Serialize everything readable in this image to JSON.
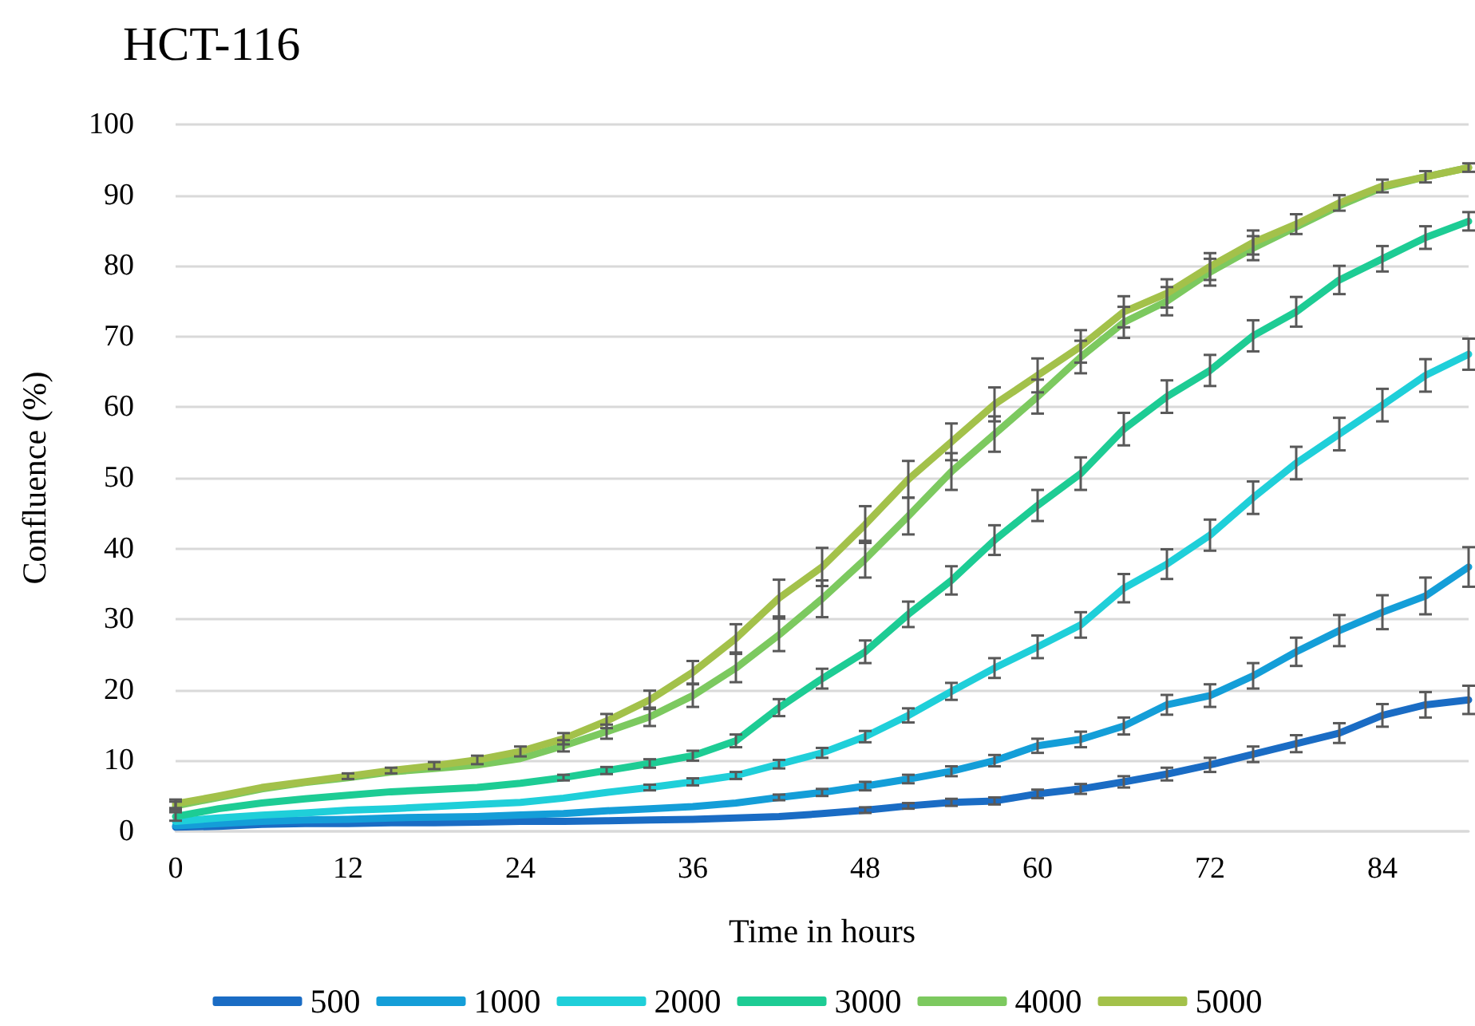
{
  "chart_data": {
    "type": "line",
    "title": "HCT-116",
    "xlabel": "Time in hours",
    "ylabel": "Confluence (%)",
    "x": [
      0,
      3,
      6,
      9,
      12,
      15,
      18,
      21,
      24,
      27,
      30,
      33,
      36,
      39,
      42,
      45,
      48,
      51,
      54,
      57,
      60,
      63,
      66,
      69,
      72,
      75,
      78,
      81,
      84,
      87,
      90
    ],
    "xlim": [
      0,
      90
    ],
    "xticks": [
      0,
      12,
      24,
      36,
      48,
      60,
      72,
      84
    ],
    "ylim": [
      0,
      100
    ],
    "yticks": [
      0,
      10,
      20,
      30,
      40,
      50,
      60,
      70,
      80,
      90,
      100
    ],
    "grid": "y",
    "legend": "bottom",
    "marker": "none",
    "line_style": "solid",
    "series": [
      {
        "name": "500",
        "color": "#1a6cc4",
        "values": [
          0.6,
          0.7,
          1.0,
          1.1,
          1.1,
          1.2,
          1.2,
          1.3,
          1.4,
          1.4,
          1.5,
          1.6,
          1.7,
          1.9,
          2.1,
          2.5,
          3.0,
          3.6,
          4.1,
          4.3,
          5.3,
          6.0,
          7.0,
          8.1,
          9.4,
          10.9,
          12.4,
          13.9,
          16.4,
          17.9,
          18.6
        ],
        "errors": [
          null,
          null,
          null,
          null,
          null,
          null,
          null,
          null,
          null,
          null,
          null,
          null,
          null,
          null,
          null,
          null,
          0.4,
          0.4,
          0.5,
          0.5,
          0.6,
          0.7,
          0.8,
          0.9,
          1.0,
          1.1,
          1.2,
          1.4,
          1.6,
          1.8,
          2.0
        ]
      },
      {
        "name": "1000",
        "color": "#149ed8",
        "values": [
          0.8,
          1.1,
          1.4,
          1.6,
          1.7,
          1.9,
          2.0,
          2.1,
          2.3,
          2.5,
          2.9,
          3.2,
          3.5,
          4.0,
          4.8,
          5.5,
          6.4,
          7.4,
          8.5,
          10.0,
          12.1,
          13.0,
          14.9,
          17.9,
          19.2,
          22.0,
          25.4,
          28.4,
          31.0,
          33.3,
          37.4
        ],
        "errors": [
          null,
          null,
          null,
          null,
          null,
          null,
          null,
          null,
          null,
          null,
          null,
          null,
          null,
          null,
          0.4,
          0.5,
          0.6,
          0.6,
          0.7,
          0.8,
          1.0,
          1.1,
          1.2,
          1.4,
          1.6,
          1.8,
          2.0,
          2.2,
          2.4,
          2.6,
          2.8
        ]
      },
      {
        "name": "2000",
        "color": "#1fcfd9",
        "values": [
          1.4,
          1.9,
          2.3,
          2.6,
          3.0,
          3.2,
          3.5,
          3.8,
          4.1,
          4.7,
          5.5,
          6.2,
          7.0,
          7.9,
          9.5,
          11.1,
          13.4,
          16.4,
          19.8,
          23.1,
          26.1,
          29.2,
          34.4,
          37.8,
          41.9,
          47.2,
          52.1,
          56.2,
          60.3,
          64.5,
          67.5
        ],
        "errors": [
          null,
          null,
          null,
          null,
          null,
          null,
          null,
          null,
          null,
          null,
          null,
          0.4,
          0.5,
          0.5,
          0.6,
          0.7,
          0.8,
          1.0,
          1.2,
          1.4,
          1.6,
          1.8,
          2.0,
          2.1,
          2.2,
          2.3,
          2.3,
          2.3,
          2.3,
          2.3,
          2.2
        ]
      },
      {
        "name": "3000",
        "color": "#1dcc94",
        "values": [
          2.1,
          3.2,
          4.0,
          4.6,
          5.1,
          5.6,
          5.9,
          6.2,
          6.8,
          7.6,
          8.6,
          9.6,
          10.7,
          12.8,
          17.5,
          21.6,
          25.4,
          30.7,
          35.5,
          41.2,
          46.1,
          50.6,
          56.9,
          61.5,
          65.2,
          70.1,
          73.5,
          78.0,
          81.0,
          84.0,
          86.3
        ],
        "errors": [
          0.6,
          null,
          null,
          null,
          null,
          null,
          null,
          null,
          null,
          0.4,
          0.5,
          0.6,
          0.7,
          0.9,
          1.2,
          1.4,
          1.6,
          1.8,
          2.0,
          2.1,
          2.2,
          2.3,
          2.3,
          2.3,
          2.2,
          2.2,
          2.1,
          2.0,
          1.8,
          1.6,
          1.3
        ]
      },
      {
        "name": "4000",
        "color": "#7cc95f",
        "values": [
          3.6,
          4.8,
          6.0,
          6.9,
          7.6,
          8.4,
          8.9,
          9.4,
          10.3,
          12.1,
          14.1,
          16.2,
          19.2,
          23.1,
          27.8,
          32.9,
          38.5,
          44.6,
          50.9,
          56.2,
          61.5,
          67.1,
          72.0,
          75.0,
          79.1,
          82.5,
          85.5,
          88.5,
          91.1,
          92.6,
          93.9
        ],
        "errors": [
          0.6,
          null,
          null,
          null,
          null,
          null,
          null,
          null,
          null,
          0.8,
          1.0,
          1.3,
          1.6,
          2.0,
          2.3,
          2.6,
          2.6,
          2.6,
          2.6,
          2.5,
          2.4,
          2.3,
          2.2,
          2.0,
          1.9,
          1.7,
          null,
          null,
          null,
          null,
          null
        ]
      },
      {
        "name": "5000",
        "color": "#a3c14a",
        "values": [
          3.9,
          5.0,
          6.2,
          7.0,
          7.8,
          8.6,
          9.3,
          10.1,
          11.3,
          13.1,
          15.6,
          18.6,
          22.5,
          27.3,
          33.0,
          37.4,
          43.4,
          49.8,
          55.1,
          60.4,
          64.5,
          68.6,
          73.5,
          76.1,
          79.9,
          83.3,
          85.9,
          88.9,
          91.3,
          92.6,
          93.9
        ],
        "errors": [
          0.6,
          null,
          null,
          null,
          0.4,
          0.4,
          0.5,
          0.6,
          0.7,
          0.8,
          1.0,
          1.3,
          1.6,
          2.0,
          2.6,
          2.7,
          2.6,
          2.6,
          2.6,
          2.4,
          2.4,
          2.3,
          2.2,
          2.0,
          1.9,
          1.7,
          1.4,
          1.1,
          0.9,
          0.8,
          0.6
        ]
      }
    ]
  }
}
